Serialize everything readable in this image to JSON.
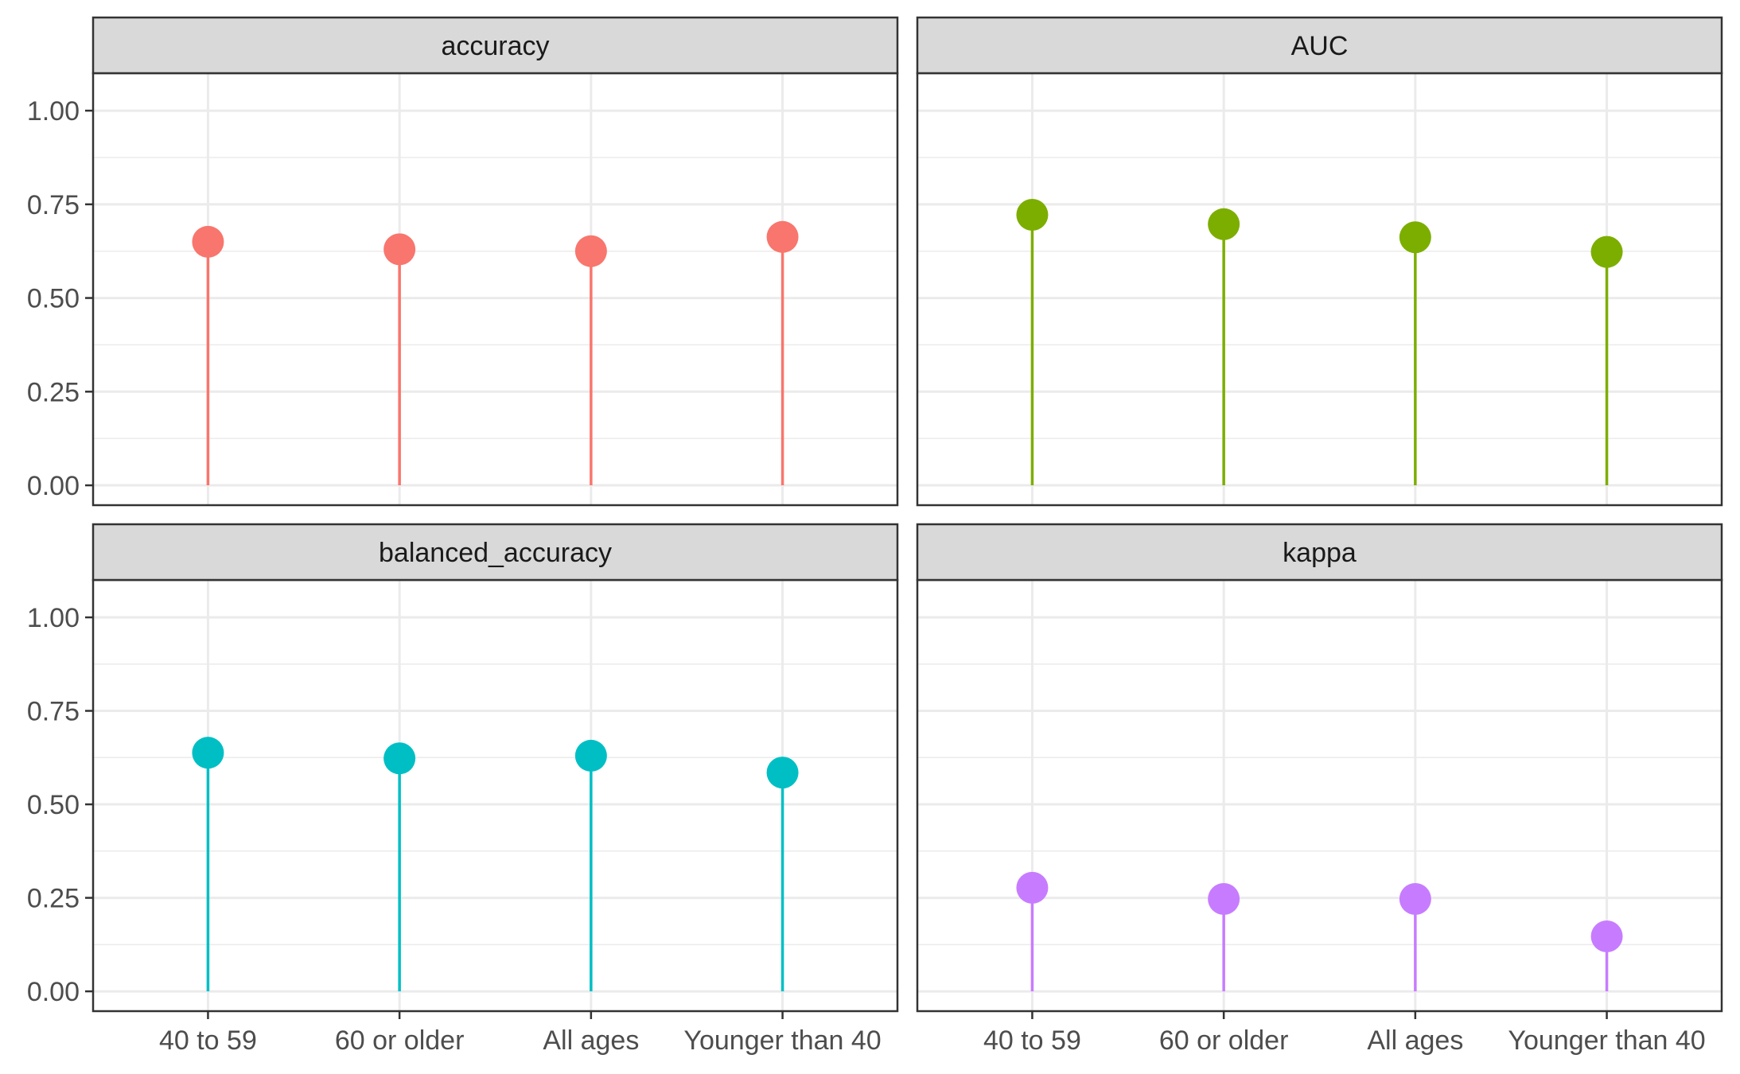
{
  "chart_data": {
    "type": "lollipop",
    "categories": [
      "40 to 59",
      "60 or older",
      "All ages",
      "Younger than 40"
    ],
    "ylim": [
      0,
      1.07
    ],
    "y_ticks": [
      "0.00",
      "0.25",
      "0.50",
      "0.75",
      "1.00"
    ],
    "y_tick_values": [
      0,
      0.25,
      0.5,
      0.75,
      1.0
    ],
    "grid": true,
    "facets": [
      {
        "title": "accuracy",
        "color": "#F8766D",
        "values": [
          0.65,
          0.63,
          0.625,
          0.663
        ]
      },
      {
        "title": "AUC",
        "color": "#7CAE00",
        "values": [
          0.722,
          0.697,
          0.662,
          0.623
        ]
      },
      {
        "title": "balanced_accuracy",
        "color": "#00BFC4",
        "values": [
          0.638,
          0.623,
          0.63,
          0.585
        ]
      },
      {
        "title": "kappa",
        "color": "#C77CFF",
        "values": [
          0.277,
          0.247,
          0.247,
          0.147
        ]
      }
    ]
  }
}
